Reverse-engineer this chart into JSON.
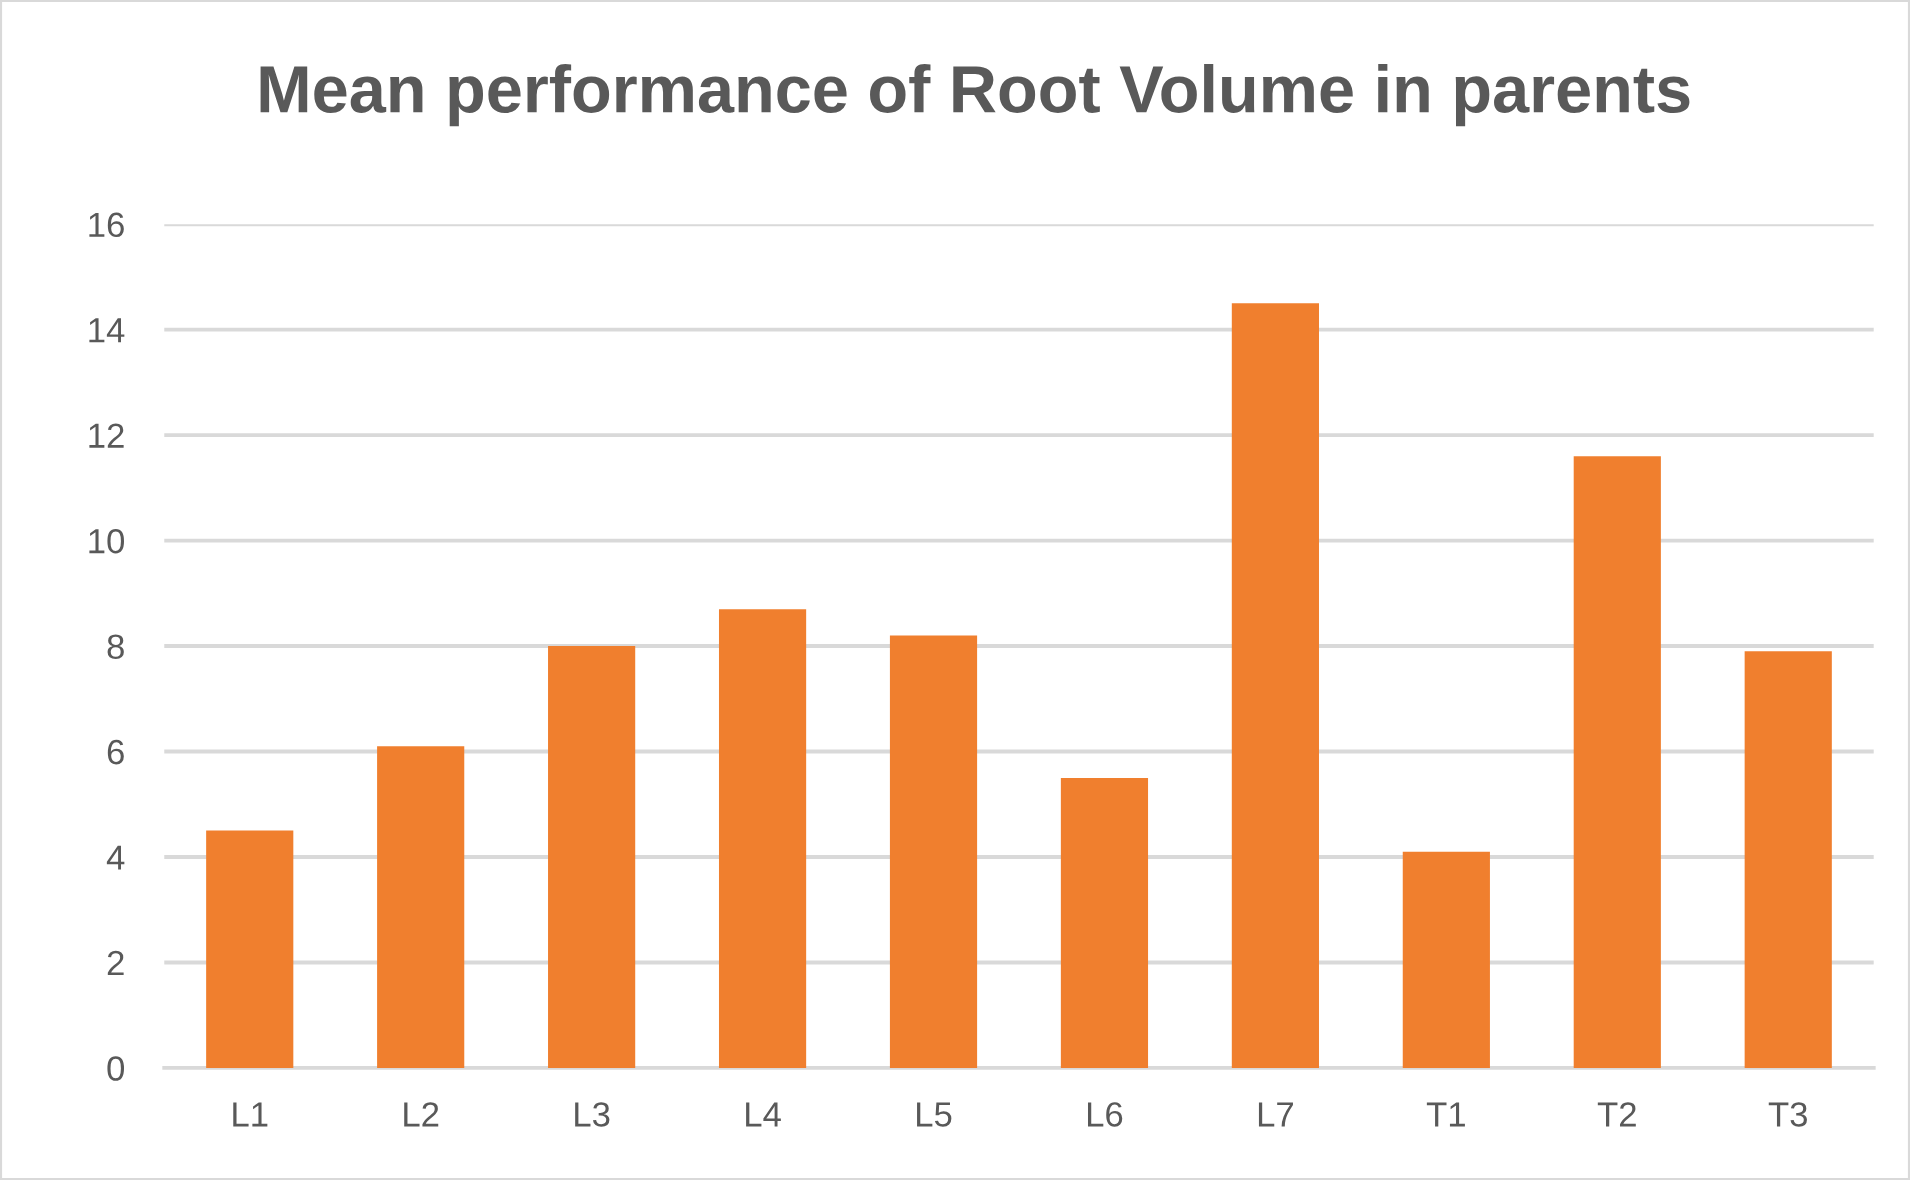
{
  "chart_data": {
    "type": "bar",
    "title": "Mean performance of Root Volume in parents",
    "categories": [
      "L1",
      "L2",
      "L3",
      "L4",
      "L5",
      "L6",
      "L7",
      "T1",
      "T2",
      "T3"
    ],
    "values": [
      4.5,
      6.1,
      8.0,
      8.7,
      8.2,
      5.5,
      14.5,
      4.1,
      11.6,
      7.9
    ],
    "color": "#f07f2e",
    "ylim": [
      0,
      16
    ],
    "yticks": [
      0,
      2,
      4,
      6,
      8,
      10,
      12,
      14,
      16
    ],
    "grid": "y"
  }
}
